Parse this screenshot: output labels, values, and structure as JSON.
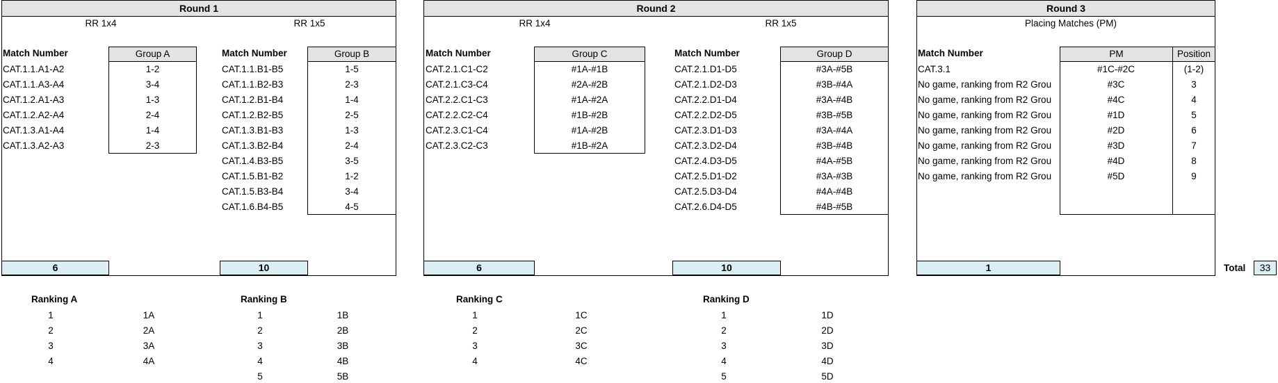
{
  "round1": {
    "title": "Round 1",
    "sub_a": "RR 1x4",
    "sub_b": "RR 1x5",
    "match_header_a": "Match Number",
    "match_header_b": "Match Number",
    "group_a_header": "Group A",
    "group_b_header": "Group B",
    "matches_a": [
      "CAT.1.1.A1-A2",
      "CAT.1.1.A3-A4",
      "CAT.1.2.A1-A3",
      "CAT.1.2.A2-A4",
      "CAT.1.3.A1-A4",
      "CAT.1.3.A2-A3"
    ],
    "pairs_a": [
      "1-2",
      "3-4",
      "1-3",
      "2-4",
      "1-4",
      "2-3"
    ],
    "matches_b": [
      "CAT.1.1.B1-B5",
      "CAT.1.1.B2-B3",
      "CAT.1.2.B1-B4",
      "CAT.1.2.B2-B5",
      "CAT.1.3.B1-B3",
      "CAT.1.3.B2-B4",
      "CAT.1.4.B3-B5",
      "CAT.1.5.B1-B2",
      "CAT.1.5.B3-B4",
      "CAT.1.6.B4-B5"
    ],
    "pairs_b": [
      "1-5",
      "2-3",
      "1-4",
      "2-5",
      "1-3",
      "2-4",
      "3-5",
      "1-2",
      "3-4",
      "4-5"
    ],
    "count_a": "6",
    "count_b": "10"
  },
  "round2": {
    "title": "Round 2",
    "sub_c": "RR 1x4",
    "sub_d": "RR 1x5",
    "match_header_c": "Match Number",
    "match_header_d": "Match Number",
    "group_c_header": "Group C",
    "group_d_header": "Group D",
    "matches_c": [
      "CAT.2.1.C1-C2",
      "CAT.2.1.C3-C4",
      "CAT.2.2.C1-C3",
      "CAT.2.2.C2-C4",
      "CAT.2.3.C1-C4",
      "CAT.2.3.C2-C3"
    ],
    "pairs_c": [
      "#1A-#1B",
      "#2A-#2B",
      "#1A-#2A",
      "#1B-#2B",
      "#1A-#2B",
      "#1B-#2A"
    ],
    "matches_d": [
      "CAT.2.1.D1-D5",
      "CAT.2.1.D2-D3",
      "CAT.2.2.D1-D4",
      "CAT.2.2.D2-D5",
      "CAT.2.3.D1-D3",
      "CAT.2.3.D2-D4",
      "CAT.2.4.D3-D5",
      "CAT.2.5.D1-D2",
      "CAT.2.5.D3-D4",
      "CAT.2.6.D4-D5"
    ],
    "pairs_d": [
      "#3A-#5B",
      "#3B-#4A",
      "#3A-#4B",
      "#3B-#5B",
      "#3A-#4A",
      "#3B-#4B",
      "#4A-#5B",
      "#3A-#3B",
      "#4A-#4B",
      "#4B-#5B"
    ],
    "count_c": "6",
    "count_d": "10"
  },
  "round3": {
    "title": "Round 3",
    "sub": "Placing Matches (PM)",
    "match_header": "Match Number",
    "pm_header": "PM",
    "position_header": "Position",
    "matches": [
      "CAT.3.1",
      "No game, ranking from R2 Grou",
      "No game, ranking from R2 Grou",
      "No game, ranking from R2 Grou",
      "No game, ranking from R2 Grou",
      "No game, ranking from R2 Grou",
      "No game, ranking from R2 Grou",
      "No game, ranking from R2 Grou"
    ],
    "pm": [
      "#1C-#2C",
      "#3C",
      "#4C",
      "#1D",
      "#2D",
      "#3D",
      "#4D",
      "#5D"
    ],
    "positions": [
      "(1-2)",
      "3",
      "4",
      "5",
      "6",
      "7",
      "8",
      "9"
    ],
    "count": "1",
    "total_label": "Total",
    "total_value": "33"
  },
  "rankings": [
    {
      "title": "Ranking A",
      "ranks": [
        "1",
        "2",
        "3",
        "4"
      ],
      "labels": [
        "1A",
        "2A",
        "3A",
        "4A"
      ]
    },
    {
      "title": "Ranking B",
      "ranks": [
        "1",
        "2",
        "3",
        "4",
        "5"
      ],
      "labels": [
        "1B",
        "2B",
        "3B",
        "4B",
        "5B"
      ]
    },
    {
      "title": "Ranking C",
      "ranks": [
        "1",
        "2",
        "3",
        "4"
      ],
      "labels": [
        "1C",
        "2C",
        "3C",
        "4C"
      ]
    },
    {
      "title": "Ranking D",
      "ranks": [
        "1",
        "2",
        "3",
        "4",
        "5"
      ],
      "labels": [
        "1D",
        "2D",
        "3D",
        "4D",
        "5D"
      ]
    }
  ]
}
